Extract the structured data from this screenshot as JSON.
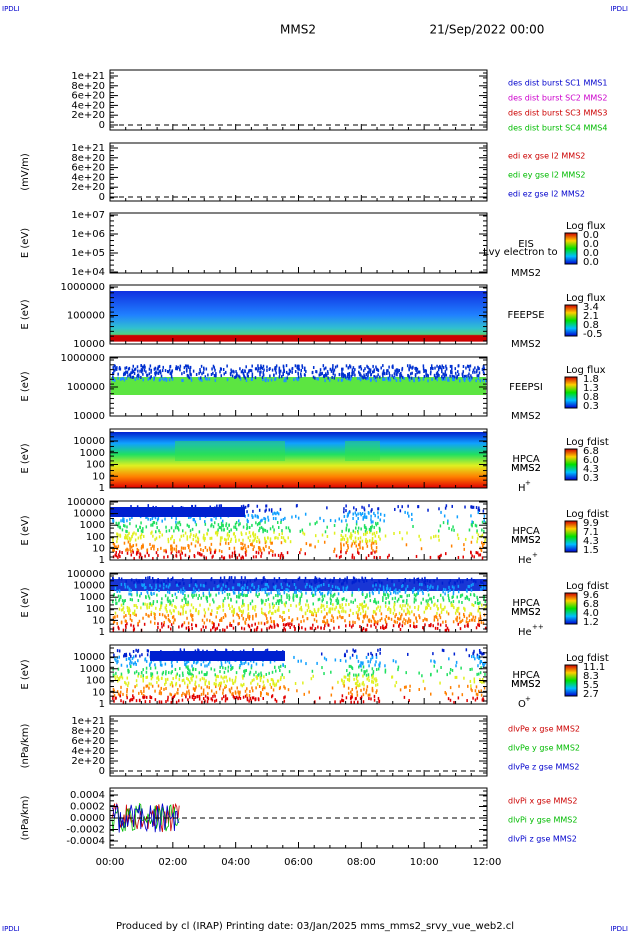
{
  "header": {
    "corner_left": "IPDLI",
    "corner_right": "IPDLI",
    "spacecraft": "MMS2",
    "date": "21/Sep/2022 00:00"
  },
  "panels": [
    {
      "ylabel": "",
      "yticks": [
        "1e+21",
        "8e+20",
        "6e+20",
        "4e+20",
        "2e+20",
        "0"
      ],
      "right_labels": [
        {
          "text": "des dist burst SC1 MMS1",
          "color": "#0000cc"
        },
        {
          "text": "des dist burst SC2 MMS2",
          "color": "#cc00cc"
        },
        {
          "text": "des dist burst SC3 MMS3",
          "color": "#cc0000"
        },
        {
          "text": "des dist burst SC4 MMS4",
          "color": "#00bb00"
        }
      ]
    },
    {
      "ylabel": "(mV/m)",
      "yticks": [
        "1e+21",
        "8e+20",
        "6e+20",
        "4e+20",
        "2e+20",
        "0"
      ],
      "right_labels": [
        {
          "text": "edi ex gse l2 MMS2",
          "color": "#cc0000"
        },
        {
          "text": "edi ey gse l2 MMS2",
          "color": "#00bb00"
        },
        {
          "text": "edi ez gse l2 MMS2",
          "color": "#0000cc"
        }
      ]
    },
    {
      "ylabel": "E (eV)",
      "yticks": [
        "1e+07",
        "1e+06",
        "1e+05",
        "1e+04"
      ],
      "instrument": "EIS",
      "overlay": "Lvy electron to",
      "spacecraft": "MMS2",
      "colorbar": {
        "title": "Log flux",
        "labels": [
          "0.0",
          "0.0",
          "0.0",
          "0.0"
        ]
      }
    },
    {
      "ylabel": "E (eV)",
      "yticks": [
        "1000000",
        "100000",
        "10000"
      ],
      "instrument": "FEEPSE",
      "spacecraft": "MMS2",
      "colorbar": {
        "title": "Log flux",
        "labels": [
          "3.4",
          "2.1",
          "0.8",
          "-0.5"
        ]
      }
    },
    {
      "ylabel": "E (eV)",
      "yticks": [
        "1000000",
        "100000",
        "10000"
      ],
      "instrument": "FEEPSI",
      "spacecraft": "MMS2",
      "colorbar": {
        "title": "Log flux",
        "labels": [
          "1.8",
          "1.3",
          "0.8",
          "0.3"
        ]
      }
    },
    {
      "ylabel": "E (eV)",
      "yticks": [
        "10000",
        "1000",
        "100",
        "10",
        "1"
      ],
      "instrument": "HPCA",
      "spacecraft": "MMS2",
      "species": {
        "base": "H",
        "sup": "+"
      },
      "colorbar": {
        "title": "Log fdist",
        "labels": [
          "6.8",
          "6.0",
          "4.3",
          "0.3"
        ]
      }
    },
    {
      "ylabel": "E (eV)",
      "yticks": [
        "100000",
        "10000",
        "1000",
        "100",
        "10",
        "1"
      ],
      "instrument": "HPCA",
      "spacecraft": "MMS2",
      "species": {
        "base": "He",
        "sup": "+"
      },
      "colorbar": {
        "title": "Log fdist",
        "labels": [
          "9.9",
          "7.1",
          "4.3",
          "1.5"
        ]
      }
    },
    {
      "ylabel": "E (eV)",
      "yticks": [
        "100000",
        "10000",
        "1000",
        "100",
        "10",
        "1"
      ],
      "instrument": "HPCA",
      "spacecraft": "MMS2",
      "species": {
        "base": "He",
        "sup": "++"
      },
      "colorbar": {
        "title": "Log fdist",
        "labels": [
          "9.6",
          "6.8",
          "4.0",
          "1.2"
        ]
      }
    },
    {
      "ylabel": "E (eV)",
      "yticks": [
        "10000",
        "1000",
        "100",
        "10",
        "1"
      ],
      "instrument": "HPCA",
      "spacecraft": "MMS2",
      "species": {
        "base": "O",
        "sup": "+"
      },
      "colorbar": {
        "title": "Log fdist",
        "labels": [
          "11.1",
          "8.3",
          "5.5",
          "2.7"
        ]
      }
    },
    {
      "ylabel": "(nPa/km)",
      "yticks": [
        "1e+21",
        "8e+20",
        "6e+20",
        "4e+20",
        "2e+20",
        "0"
      ],
      "right_labels": [
        {
          "text": "dlvPe x gse MMS2",
          "color": "#cc0000"
        },
        {
          "text": "dlvPe y gse MMS2",
          "color": "#00bb00"
        },
        {
          "text": "dlvPe z gse MMS2",
          "color": "#0000cc"
        }
      ]
    },
    {
      "ylabel": "(nPa/km)",
      "yticks": [
        "0.0004",
        "0.0002",
        "0.0000",
        "-0.0002",
        "-0.0004"
      ],
      "right_labels": [
        {
          "text": "dlvPi x gse MMS2",
          "color": "#cc0000"
        },
        {
          "text": "dlvPi y gse MMS2",
          "color": "#00bb00"
        },
        {
          "text": "dlvPi z gse MMS2",
          "color": "#0000cc"
        }
      ]
    }
  ],
  "xticks": [
    "00:00",
    "02:00",
    "04:00",
    "06:00",
    "08:00",
    "10:00",
    "12:00"
  ],
  "footer": {
    "text": "Produced by cl (IRAP)   Printing date: 03/Jan/2025   mms_mms2_srvy_vue_web2.cl",
    "corner_left": "IPDLI",
    "corner_right": "IPDLI"
  }
}
